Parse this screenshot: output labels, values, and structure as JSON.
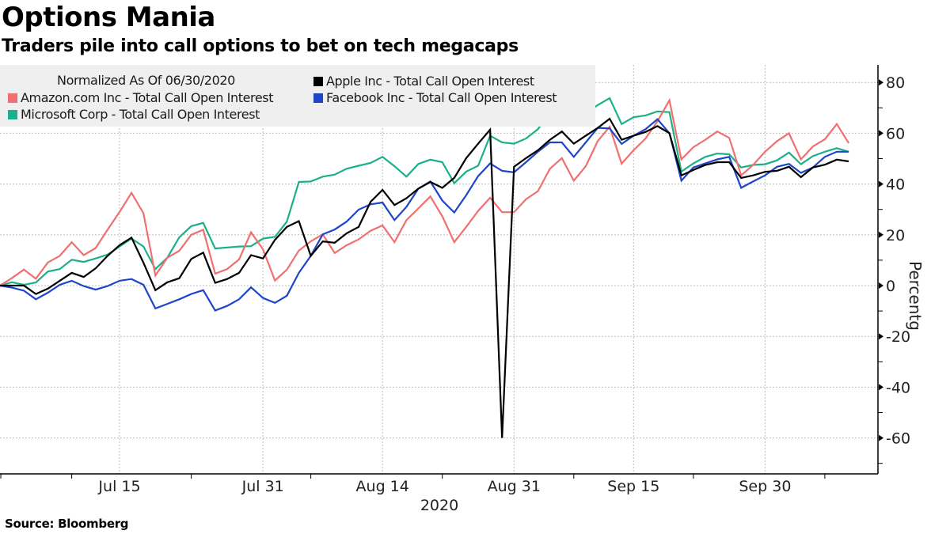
{
  "header": {
    "title": "Options Mania",
    "subtitle": "Traders pile into call options to bet on tech megacaps"
  },
  "footer": {
    "source": "Source: Bloomberg"
  },
  "chart_data": {
    "type": "line",
    "title": "Options Mania",
    "subtitle": "Traders pile into call options to bet on tech megacaps",
    "legend_note": "Normalized As Of 06/30/2020",
    "legend_position": "top-left",
    "xlabel": "2020",
    "ylabel": "Percentg",
    "y_axis_side": "right",
    "ylim": [
      -72,
      86
    ],
    "yticks": [
      80,
      60,
      40,
      20,
      0,
      -20,
      -40,
      -60
    ],
    "ytick_labels": [
      "80",
      "60",
      "40",
      "20",
      "0",
      "-20",
      "-40",
      "-60"
    ],
    "grid": true,
    "x_start": "2020-06-30",
    "x_end": "2020-10-09",
    "x_ticks": [
      {
        "label": "Jul 15",
        "index": 10
      },
      {
        "label": "Jul 31",
        "index": 22
      },
      {
        "label": "Aug 14",
        "index": 32
      },
      {
        "label": "Aug 31",
        "index": 43
      },
      {
        "label": "Sep 15",
        "index": 53
      },
      {
        "label": "Sep 30",
        "index": 64
      }
    ],
    "x_minor_ticks": [
      0,
      6,
      16,
      26,
      37,
      48,
      58,
      69
    ],
    "x": [
      "06-30",
      "07-01",
      "07-02",
      "07-06",
      "07-07",
      "07-08",
      "07-09",
      "07-10",
      "07-13",
      "07-14",
      "07-15",
      "07-16",
      "07-17",
      "07-20",
      "07-21",
      "07-22",
      "07-23",
      "07-24",
      "07-27",
      "07-28",
      "07-29",
      "07-30",
      "07-31",
      "08-03",
      "08-04",
      "08-05",
      "08-06",
      "08-07",
      "08-10",
      "08-11",
      "08-12",
      "08-13",
      "08-14",
      "08-17",
      "08-18",
      "08-19",
      "08-20",
      "08-21",
      "08-24",
      "08-25",
      "08-26",
      "08-27",
      "08-28",
      "08-31",
      "09-01",
      "09-02",
      "09-03",
      "09-04",
      "09-08",
      "09-09",
      "09-10",
      "09-11",
      "09-14",
      "09-15",
      "09-16",
      "09-17",
      "09-18",
      "09-21",
      "09-22",
      "09-23",
      "09-24",
      "09-25",
      "09-28",
      "09-29",
      "09-30",
      "10-01",
      "10-02",
      "10-05",
      "10-06",
      "10-07",
      "10-08",
      "10-09"
    ],
    "series": [
      {
        "name": "Amazon.com Inc - Total Call Open Interest",
        "color": "#f07070",
        "values": [
          0,
          3,
          6.3,
          2.7,
          9.1,
          11.7,
          17.1,
          12,
          14.8,
          22,
          29,
          36.5,
          28.5,
          4,
          11,
          13.7,
          20,
          22,
          4.7,
          6.5,
          10.3,
          21,
          14.3,
          2,
          6.3,
          13.8,
          17.4,
          20.2,
          12.8,
          15.9,
          18.2,
          21.6,
          23.7,
          17.1,
          25.8,
          30.4,
          35.1,
          27.3,
          17.1,
          23.1,
          29.4,
          34.6,
          28.9,
          28.9,
          34,
          37.2,
          46,
          50.2,
          41.3,
          47,
          56.9,
          62.6,
          48,
          53.3,
          57.9,
          64.7,
          73,
          49.7,
          54.5,
          57.4,
          60.7,
          58.2,
          43.4,
          47.5,
          52.7,
          56.9,
          60,
          49.7,
          54.8,
          57.6,
          63.6,
          56.1
        ]
      },
      {
        "name": "Microsoft Corp - Total Call Open Interest",
        "color": "#1cb08a",
        "values": [
          0,
          1.3,
          0.3,
          1.2,
          5.5,
          6.5,
          10.2,
          9.3,
          10.7,
          12.2,
          15.4,
          18.5,
          15.4,
          6.5,
          11,
          19,
          23.4,
          24.7,
          14.6,
          15,
          15.4,
          15.5,
          18.5,
          19.2,
          25.2,
          40.8,
          41,
          42.9,
          43.7,
          46,
          47.2,
          48.3,
          50.7,
          47,
          42.9,
          47.9,
          49.6,
          48.6,
          40.3,
          44.9,
          47.2,
          59,
          56.4,
          55.9,
          57.9,
          61.6,
          68.3,
          71.5,
          65.9,
          67.8,
          71.1,
          73.8,
          63.6,
          66.3,
          67,
          68.6,
          68.3,
          44.9,
          48.1,
          50.7,
          52,
          51.7,
          46.5,
          47.5,
          47.8,
          49.3,
          52.4,
          47.8,
          51,
          52.7,
          54.1,
          52.7
        ]
      },
      {
        "name": "Apple Inc - Total Call Open Interest",
        "color": "#000000",
        "values": [
          0,
          0,
          0,
          -3.3,
          -1.2,
          1.9,
          5,
          3.4,
          6.8,
          11.7,
          15.9,
          18.9,
          9,
          -1.8,
          1.3,
          2.9,
          10.5,
          13,
          1.1,
          2.6,
          5,
          12,
          10.7,
          18,
          23.1,
          25.4,
          11.7,
          17.4,
          16.9,
          20.6,
          23.1,
          33,
          37.7,
          31.7,
          34.4,
          38.2,
          40.8,
          38.5,
          42.4,
          50.2,
          55.9,
          61.4,
          -60,
          46.8,
          50.2,
          53.3,
          57.4,
          60.7,
          55.9,
          59,
          62.1,
          65.7,
          57.4,
          59,
          60.5,
          62.8,
          60,
          43.4,
          45.5,
          47.5,
          48.6,
          48.6,
          42.4,
          43.4,
          44.8,
          45.2,
          46.8,
          42.7,
          46.5,
          47.6,
          49.6,
          48.9
        ]
      },
      {
        "name": "Facebook Inc - Total Call Open Interest",
        "color": "#1e45c8",
        "values": [
          0,
          -0.8,
          -2,
          -5.4,
          -2.8,
          0.3,
          1.9,
          -0.2,
          -1.6,
          -0.2,
          1.9,
          2.6,
          0.3,
          -9,
          -7.2,
          -5.4,
          -3.3,
          -1.8,
          -9.8,
          -8,
          -5.4,
          -0.7,
          -4.9,
          -6.8,
          -4,
          5,
          11.7,
          20.2,
          22.1,
          25.2,
          29.9,
          32,
          32.7,
          25.8,
          31,
          38.2,
          41,
          33.5,
          28.8,
          35.6,
          43.1,
          48.1,
          45.2,
          44.6,
          48.6,
          52.7,
          56.4,
          56.4,
          50.7,
          56.4,
          62.1,
          61.9,
          55.8,
          59,
          61.6,
          65.5,
          60,
          41.3,
          46.5,
          48.1,
          49.7,
          50.7,
          38.5,
          41,
          43.4,
          46.8,
          47.9,
          44.4,
          46.5,
          50.7,
          52.7,
          52.7
        ]
      }
    ],
    "legend_order": [
      {
        "series": 0,
        "slot": "left-1"
      },
      {
        "series": 1,
        "slot": "left-2"
      },
      {
        "series": 2,
        "slot": "right-0"
      },
      {
        "series": 3,
        "slot": "right-1"
      }
    ]
  }
}
